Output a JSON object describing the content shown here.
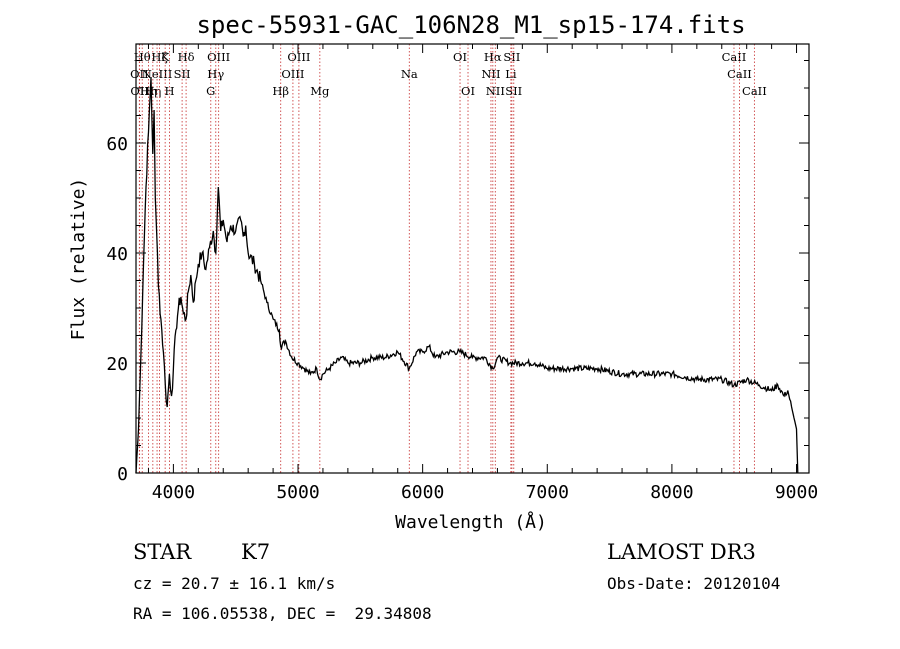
{
  "chart_data": {
    "type": "line",
    "title": "spec-55931-GAC_106N28_M1_sp15-174.fits",
    "xlabel": "Wavelength (Å)",
    "ylabel": "Flux (relative)",
    "xlim": [
      3700,
      9100
    ],
    "ylim": [
      0,
      78
    ],
    "x_ticks": [
      4000,
      5000,
      6000,
      7000,
      8000,
      9000
    ],
    "x_tick_labels": [
      "4000",
      "5000",
      "6000",
      "7000",
      "8000",
      "9000"
    ],
    "y_ticks": [
      0,
      20,
      40,
      60
    ],
    "y_tick_labels": [
      "0",
      "20",
      "40",
      "60"
    ],
    "grid": false,
    "series": [
      {
        "name": "flux",
        "x": [
          3700,
          3720,
          3740,
          3760,
          3780,
          3800,
          3820,
          3835,
          3845,
          3855,
          3865,
          3880,
          3900,
          3920,
          3935,
          3950,
          3968,
          3985,
          4000,
          4020,
          4040,
          4060,
          4080,
          4102,
          4120,
          4140,
          4160,
          4180,
          4200,
          4230,
          4260,
          4290,
          4320,
          4340,
          4360,
          4380,
          4400,
          4430,
          4460,
          4500,
          4540,
          4560,
          4580,
          4600,
          4650,
          4700,
          4750,
          4800,
          4850,
          4861,
          4900,
          4950,
          5000,
          5050,
          5100,
          5150,
          5175,
          5200,
          5250,
          5300,
          5350,
          5400,
          5500,
          5600,
          5700,
          5800,
          5893,
          5950,
          6000,
          6050,
          6100,
          6200,
          6300,
          6400,
          6500,
          6563,
          6600,
          6700,
          6800,
          6900,
          7000,
          7200,
          7400,
          7600,
          7800,
          8000,
          8200,
          8400,
          8500,
          8600,
          8700,
          8800,
          8850,
          8900,
          8930,
          8960,
          9000,
          9010
        ],
        "values": [
          0,
          8,
          22,
          38,
          52,
          62,
          72,
          58,
          66,
          50,
          44,
          34,
          28,
          22,
          16,
          12,
          18,
          14,
          19,
          26,
          30,
          32,
          29,
          28,
          33,
          36,
          31,
          35,
          38,
          40,
          37,
          41,
          44,
          40,
          52,
          44,
          46,
          42,
          45,
          44,
          46,
          43,
          45,
          40,
          38,
          35,
          31,
          28,
          26,
          23,
          24,
          21,
          20,
          19,
          18,
          19,
          17,
          18,
          19,
          20,
          21,
          20,
          20,
          21,
          21,
          22,
          19,
          22,
          22,
          23,
          21,
          22,
          22,
          21,
          21,
          19,
          21,
          20,
          20,
          20,
          19,
          19,
          19,
          18,
          18,
          18,
          17,
          17,
          16,
          17,
          16,
          15,
          16,
          14,
          15,
          12,
          8,
          0
        ]
      }
    ],
    "line_markers": [
      {
        "wavelength": 3727,
        "label": "OII",
        "row": 2
      },
      {
        "wavelength": 3729,
        "label": "OII",
        "row": 3
      },
      {
        "wavelength": 3750,
        "label": "Hθ",
        "row": 1
      },
      {
        "wavelength": 3800,
        "label": "Hη",
        "row": 3
      },
      {
        "wavelength": 3835,
        "label": "Hη",
        "row": 3
      },
      {
        "wavelength": 3869,
        "label": "NeIII",
        "row": 2
      },
      {
        "wavelength": 3889,
        "label": "Hζ",
        "row": 1
      },
      {
        "wavelength": 3934,
        "label": "K",
        "row": 1
      },
      {
        "wavelength": 3969,
        "label": "H",
        "row": 3
      },
      {
        "wavelength": 4070,
        "label": "SII",
        "row": 2
      },
      {
        "wavelength": 4102,
        "label": "Hδ",
        "row": 1
      },
      {
        "wavelength": 4300,
        "label": "G",
        "row": 3
      },
      {
        "wavelength": 4340,
        "label": "Hγ",
        "row": 2
      },
      {
        "wavelength": 4363,
        "label": "OIII",
        "row": 1
      },
      {
        "wavelength": 4861,
        "label": "Hβ",
        "row": 3
      },
      {
        "wavelength": 4959,
        "label": "OIII",
        "row": 2
      },
      {
        "wavelength": 5007,
        "label": "OIII",
        "row": 1
      },
      {
        "wavelength": 5175,
        "label": "Mg",
        "row": 3
      },
      {
        "wavelength": 5893,
        "label": "Na",
        "row": 2
      },
      {
        "wavelength": 6300,
        "label": "OI",
        "row": 1
      },
      {
        "wavelength": 6364,
        "label": "OI",
        "row": 3
      },
      {
        "wavelength": 6548,
        "label": "NII",
        "row": 2
      },
      {
        "wavelength": 6563,
        "label": "Hα",
        "row": 1
      },
      {
        "wavelength": 6583,
        "label": "NII",
        "row": 3
      },
      {
        "wavelength": 6708,
        "label": "Li",
        "row": 2
      },
      {
        "wavelength": 6716,
        "label": "SII",
        "row": 1
      },
      {
        "wavelength": 6731,
        "label": "SII",
        "row": 3
      },
      {
        "wavelength": 8498,
        "label": "CaII",
        "row": 1
      },
      {
        "wavelength": 8542,
        "label": "CaII",
        "row": 2
      },
      {
        "wavelength": 8662,
        "label": "CaII",
        "row": 3
      }
    ]
  },
  "info": {
    "object_class": "STAR",
    "subclass": "K7",
    "redshift": "cz = 20.7 ± 16.1 km/s",
    "coords": "RA = 106.05538, DEC =  29.34808",
    "survey": "LAMOST DR3",
    "obs_date": "Obs-Date: 20120104"
  }
}
